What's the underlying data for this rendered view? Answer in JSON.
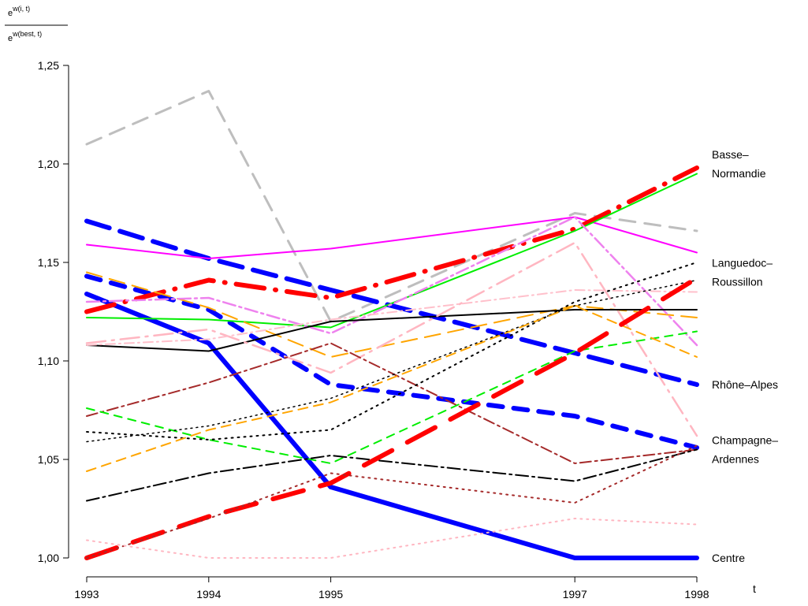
{
  "chart_data": {
    "type": "line",
    "title": "",
    "xlabel": "t",
    "ylabel_numerator": "e",
    "ylabel_numerator_exp": "w(i, t)",
    "ylabel_denominator": "e",
    "ylabel_denominator_exp": "w(best, t)",
    "x": [
      1993,
      1994,
      1995,
      1997,
      1998
    ],
    "x_tick_labels": [
      "1993",
      "1994",
      "1995",
      "1997",
      "1998"
    ],
    "xlim": [
      1993,
      1998
    ],
    "ylim": [
      1.0,
      1.25
    ],
    "y_ticks": [
      1.0,
      1.05,
      1.1,
      1.15,
      1.2,
      1.25
    ],
    "y_tick_labels": [
      "1,00",
      "1,05",
      "1,10",
      "1,15",
      "1,20",
      "1,25"
    ],
    "grid": false,
    "legend": "none",
    "annotations": [
      {
        "lines": [
          "Basse–",
          "Normandie"
        ],
        "y": 1.2
      },
      {
        "lines": [
          "Languedoc–",
          "Roussillon"
        ],
        "y": 1.145
      },
      {
        "lines": [
          "Rhône–Alpes"
        ],
        "y": 1.088
      },
      {
        "lines": [
          "Champagne–",
          "Ardennes"
        ],
        "y": 1.055
      },
      {
        "lines": [
          "Centre"
        ],
        "y": 1.0
      }
    ],
    "series": [
      {
        "values": [
          1.21,
          1.237,
          1.12,
          1.175,
          1.166
        ],
        "color": "#bebebe",
        "width": 3,
        "dash": "20,12"
      },
      {
        "values": [
          1.171,
          1.152,
          1.136,
          1.104,
          1.088
        ],
        "color": "#0000ff",
        "width": 6,
        "dash": "30,14"
      },
      {
        "values": [
          1.143,
          1.126,
          1.088,
          1.072,
          1.056
        ],
        "color": "#0000ff",
        "width": 6,
        "dash": "18,14"
      },
      {
        "values": [
          1.134,
          1.109,
          1.036,
          1.0,
          1.0
        ],
        "color": "#0000ff",
        "width": 6,
        "dash": ""
      },
      {
        "values": [
          1.159,
          1.152,
          1.157,
          1.173,
          1.155
        ],
        "color": "#ff00ff",
        "width": 2,
        "dash": ""
      },
      {
        "values": [
          1.125,
          1.141,
          1.132,
          1.167,
          1.198
        ],
        "color": "#ff0000",
        "width": 6,
        "dash": "36,14,1,14"
      },
      {
        "values": [
          1.122,
          1.121,
          1.117,
          1.166,
          1.195
        ],
        "color": "#00ee00",
        "width": 2,
        "dash": ""
      },
      {
        "values": [
          1.145,
          1.127,
          1.102,
          1.128,
          1.122
        ],
        "color": "#ffa500",
        "width": 2,
        "dash": "20,10"
      },
      {
        "values": [
          1.13,
          1.132,
          1.114,
          1.173,
          1.108
        ],
        "color": "#ee82ee",
        "width": 2.5,
        "dash": "16,5,3,5"
      },
      {
        "values": [
          1.108,
          1.105,
          1.12,
          1.126,
          1.126
        ],
        "color": "#000000",
        "width": 2,
        "dash": ""
      },
      {
        "values": [
          1.109,
          1.116,
          1.094,
          1.16,
          1.062
        ],
        "color": "#ffb6c1",
        "width": 2.5,
        "dash": "24,8,3,8"
      },
      {
        "values": [
          1.108,
          1.111,
          1.121,
          1.136,
          1.135
        ],
        "color": "#ffc0cb",
        "width": 2,
        "dash": "12,5,2,5"
      },
      {
        "values": [
          1.072,
          1.089,
          1.109,
          1.048,
          1.055
        ],
        "color": "#a52a2a",
        "width": 2,
        "dash": "14,5,3,5"
      },
      {
        "values": [
          1.076,
          1.06,
          1.048,
          1.105,
          1.115
        ],
        "color": "#00ee00",
        "width": 2,
        "dash": "10,8"
      },
      {
        "values": [
          1.064,
          1.06,
          1.065,
          1.13,
          1.15
        ],
        "color": "#000000",
        "width": 2,
        "dash": "2,6"
      },
      {
        "values": [
          1.059,
          1.067,
          1.081,
          1.128,
          1.141
        ],
        "color": "#000000",
        "width": 1.5,
        "dash": "2,5"
      },
      {
        "values": [
          1.044,
          1.065,
          1.079,
          1.128,
          1.102
        ],
        "color": "#ffa500",
        "width": 2,
        "dash": "12,8"
      },
      {
        "values": [
          1.029,
          1.043,
          1.052,
          1.039,
          1.055
        ],
        "color": "#000000",
        "width": 2,
        "dash": "16,5,3,5"
      },
      {
        "values": [
          1.0,
          1.021,
          1.038,
          1.104,
          1.142
        ],
        "color": "#ff0000",
        "width": 6,
        "dash": "40,22"
      },
      {
        "values": [
          1.0,
          1.02,
          1.043,
          1.028,
          1.057
        ],
        "color": "#a52a2a",
        "width": 2,
        "dash": "2,6"
      },
      {
        "values": [
          1.009,
          1.0,
          1.0,
          1.02,
          1.017
        ],
        "color": "#ffb6c1",
        "width": 2,
        "dash": "2,6"
      }
    ]
  }
}
